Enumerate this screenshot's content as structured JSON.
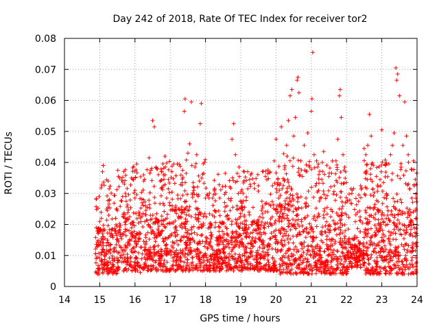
{
  "chart_data": {
    "type": "scatter",
    "title": "Day 242 of 2018, Rate Of TEC Index for receiver tor2",
    "xlabel": "GPS time / hours",
    "ylabel": "ROTI / TECUs",
    "xlim": [
      14,
      24
    ],
    "ylim": [
      0,
      0.08
    ],
    "xticks": [
      "14",
      "15",
      "16",
      "17",
      "18",
      "19",
      "20",
      "21",
      "22",
      "23",
      "24"
    ],
    "yticks": [
      "0",
      "0.01",
      "0.02",
      "0.03",
      "0.04",
      "0.05",
      "0.06",
      "0.07",
      "0.08"
    ],
    "grid": true,
    "marker": "plus",
    "color": "#ff0000",
    "series": [
      {
        "name": "ROTI",
        "points": [
          [
            14.92,
            0.0095
          ],
          [
            14.95,
            0.013
          ],
          [
            14.98,
            0.029
          ],
          [
            15.02,
            0.0185
          ],
          [
            15.05,
            0.011
          ],
          [
            15.08,
            0.037
          ],
          [
            15.1,
            0.039
          ],
          [
            15.12,
            0.0075
          ],
          [
            15.15,
            0.0155
          ],
          [
            15.2,
            0.025
          ],
          [
            15.24,
            0.034
          ],
          [
            15.3,
            0.012
          ],
          [
            15.35,
            0.0185
          ],
          [
            15.4,
            0.0065
          ],
          [
            15.45,
            0.022
          ],
          [
            15.5,
            0.0245
          ],
          [
            15.55,
            0.011
          ],
          [
            15.6,
            0.0125
          ],
          [
            15.65,
            0.029
          ],
          [
            15.7,
            0.033
          ],
          [
            15.75,
            0.0275
          ],
          [
            15.8,
            0.0085
          ],
          [
            15.85,
            0.0225
          ],
          [
            15.9,
            0.035
          ],
          [
            15.95,
            0.016
          ],
          [
            16.0,
            0.031
          ],
          [
            16.05,
            0.0395
          ],
          [
            16.1,
            0.0205
          ],
          [
            16.15,
            0.0045
          ],
          [
            16.2,
            0.027
          ],
          [
            16.25,
            0.034
          ],
          [
            16.3,
            0.012
          ],
          [
            16.35,
            0.0255
          ],
          [
            16.4,
            0.0415
          ],
          [
            16.45,
            0.0375
          ],
          [
            16.5,
            0.0535
          ],
          [
            16.55,
            0.0515
          ],
          [
            16.6,
            0.0385
          ],
          [
            16.65,
            0.0185
          ],
          [
            16.7,
            0.009
          ],
          [
            16.75,
            0.037
          ],
          [
            16.8,
            0.0325
          ],
          [
            16.85,
            0.042
          ],
          [
            16.9,
            0.0285
          ],
          [
            16.95,
            0.0345
          ],
          [
            17.0,
            0.0115
          ],
          [
            17.05,
            0.0205
          ],
          [
            17.1,
            0.0395
          ],
          [
            17.15,
            0.0255
          ],
          [
            17.2,
            0.0395
          ],
          [
            17.25,
            0.0065
          ],
          [
            17.3,
            0.0225
          ],
          [
            17.35,
            0.0375
          ],
          [
            17.4,
            0.0565
          ],
          [
            17.42,
            0.0605
          ],
          [
            17.45,
            0.0275
          ],
          [
            17.5,
            0.043
          ],
          [
            17.55,
            0.046
          ],
          [
            17.6,
            0.0595
          ],
          [
            17.65,
            0.0335
          ],
          [
            17.7,
            0.0385
          ],
          [
            17.75,
            0.0425
          ],
          [
            17.8,
            0.0295
          ],
          [
            17.85,
            0.0525
          ],
          [
            17.88,
            0.059
          ],
          [
            17.92,
            0.0145
          ],
          [
            17.95,
            0.0365
          ],
          [
            18.0,
            0.0285
          ],
          [
            18.05,
            0.0125
          ],
          [
            18.1,
            0.0285
          ],
          [
            18.15,
            0.0165
          ],
          [
            18.2,
            0.0285
          ],
          [
            18.25,
            0.0225
          ],
          [
            18.3,
            0.007
          ],
          [
            18.35,
            0.0155
          ],
          [
            18.4,
            0.0285
          ],
          [
            18.45,
            0.0155
          ],
          [
            18.5,
            0.0205
          ],
          [
            18.55,
            0.0125
          ],
          [
            18.6,
            0.0095
          ],
          [
            18.65,
            0.0145
          ],
          [
            18.7,
            0.0245
          ],
          [
            18.75,
            0.0475
          ],
          [
            18.8,
            0.0525
          ],
          [
            18.85,
            0.0425
          ],
          [
            18.9,
            0.0365
          ],
          [
            18.95,
            0.0385
          ],
          [
            19.0,
            0.0305
          ],
          [
            19.05,
            0.0245
          ],
          [
            19.1,
            0.0225
          ],
          [
            19.15,
            0.0175
          ],
          [
            19.2,
            0.0315
          ],
          [
            19.25,
            0.0345
          ],
          [
            19.3,
            0.0135
          ],
          [
            19.35,
            0.0255
          ],
          [
            19.4,
            0.0205
          ],
          [
            19.45,
            0.0095
          ],
          [
            19.5,
            0.0325
          ],
          [
            19.55,
            0.0185
          ],
          [
            19.6,
            0.0275
          ],
          [
            19.65,
            0.0135
          ],
          [
            19.7,
            0.0355
          ],
          [
            19.75,
            0.0205
          ],
          [
            19.8,
            0.0265
          ],
          [
            19.85,
            0.0155
          ],
          [
            19.9,
            0.0325
          ],
          [
            19.95,
            0.0405
          ],
          [
            20.0,
            0.0475
          ],
          [
            20.05,
            0.0345
          ],
          [
            20.1,
            0.0265
          ],
          [
            20.15,
            0.0515
          ],
          [
            20.2,
            0.0225
          ],
          [
            20.25,
            0.0385
          ],
          [
            20.3,
            0.0455
          ],
          [
            20.35,
            0.0535
          ],
          [
            20.4,
            0.0615
          ],
          [
            20.45,
            0.0635
          ],
          [
            20.5,
            0.0485
          ],
          [
            20.55,
            0.0545
          ],
          [
            20.6,
            0.0665
          ],
          [
            20.62,
            0.0675
          ],
          [
            20.65,
            0.0625
          ],
          [
            20.7,
            0.0405
          ],
          [
            20.75,
            0.0355
          ],
          [
            20.8,
            0.0455
          ],
          [
            20.85,
            0.0285
          ],
          [
            20.9,
            0.0495
          ],
          [
            20.95,
            0.0385
          ],
          [
            21.0,
            0.0565
          ],
          [
            21.02,
            0.0605
          ],
          [
            21.04,
            0.0755
          ],
          [
            21.08,
            0.0425
          ],
          [
            21.12,
            0.0325
          ],
          [
            21.15,
            0.0405
          ],
          [
            21.2,
            0.0395
          ],
          [
            21.25,
            0.0285
          ],
          [
            21.3,
            0.0345
          ],
          [
            21.35,
            0.0435
          ],
          [
            21.4,
            0.0175
          ],
          [
            21.45,
            0.0255
          ],
          [
            21.5,
            0.0355
          ],
          [
            21.55,
            0.0225
          ],
          [
            21.6,
            0.0405
          ],
          [
            21.65,
            0.0325
          ],
          [
            21.7,
            0.0405
          ],
          [
            21.75,
            0.0475
          ],
          [
            21.8,
            0.0615
          ],
          [
            21.82,
            0.0635
          ],
          [
            21.85,
            0.0545
          ],
          [
            21.9,
            0.0425
          ],
          [
            21.95,
            0.0385
          ],
          [
            22.0,
            0.0335
          ],
          [
            22.05,
            0.0185
          ],
          [
            22.1,
            0.0095
          ],
          [
            22.3,
            0.0095
          ],
          [
            22.35,
            0.0295
          ],
          [
            22.4,
            0.0325
          ],
          [
            22.45,
            0.0205
          ],
          [
            22.5,
            0.0445
          ],
          [
            22.55,
            0.0425
          ],
          [
            22.6,
            0.0455
          ],
          [
            22.65,
            0.0555
          ],
          [
            22.7,
            0.0485
          ],
          [
            22.75,
            0.0315
          ],
          [
            22.8,
            0.0255
          ],
          [
            22.85,
            0.0355
          ],
          [
            22.9,
            0.0245
          ],
          [
            22.95,
            0.0345
          ],
          [
            23.0,
            0.0505
          ],
          [
            23.05,
            0.0335
          ],
          [
            23.1,
            0.0395
          ],
          [
            23.15,
            0.0295
          ],
          [
            23.2,
            0.0395
          ],
          [
            23.25,
            0.0425
          ],
          [
            23.3,
            0.0455
          ],
          [
            23.35,
            0.0495
          ],
          [
            23.4,
            0.0705
          ],
          [
            23.42,
            0.0665
          ],
          [
            23.45,
            0.0685
          ],
          [
            23.5,
            0.0615
          ],
          [
            23.55,
            0.0385
          ],
          [
            23.6,
            0.0455
          ],
          [
            23.65,
            0.0595
          ],
          [
            23.7,
            0.0485
          ],
          [
            23.75,
            0.0425
          ],
          [
            23.8,
            0.0315
          ],
          [
            23.85,
            0.0285
          ],
          [
            23.9,
            0.0405
          ],
          [
            23.95,
            0.0345
          ]
        ],
        "band": [
          {
            "from": 14.88,
            "to": 15.5,
            "low": 0.004,
            "high": 0.019
          },
          {
            "from": 15.5,
            "to": 16.8,
            "low": 0.005,
            "high": 0.024
          },
          {
            "from": 16.8,
            "to": 18.0,
            "low": 0.005,
            "high": 0.025
          },
          {
            "from": 18.0,
            "to": 19.0,
            "low": 0.005,
            "high": 0.021
          },
          {
            "from": 19.0,
            "to": 20.0,
            "low": 0.005,
            "high": 0.022
          },
          {
            "from": 20.0,
            "to": 21.0,
            "low": 0.004,
            "high": 0.027
          },
          {
            "from": 21.0,
            "to": 22.05,
            "low": 0.004,
            "high": 0.024
          },
          {
            "from": 22.05,
            "to": 22.5,
            "low": 0.006,
            "high": 0.016
          },
          {
            "from": 22.5,
            "to": 24.0,
            "low": 0.004,
            "high": 0.025
          }
        ]
      }
    ]
  }
}
